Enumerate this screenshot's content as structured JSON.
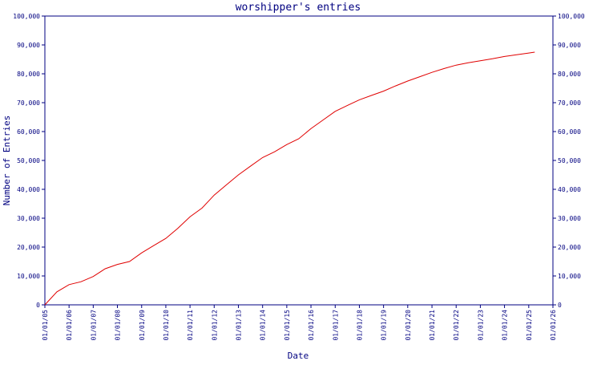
{
  "chart_data": {
    "type": "line",
    "title": "worshipper's entries",
    "xlabel": "Date",
    "ylabel": "Number of Entries",
    "xlim": [
      "2005-01-01",
      "2026-01-01"
    ],
    "ylim": [
      0,
      100000
    ],
    "x_ticks": [
      "01/01/05",
      "01/01/06",
      "01/01/07",
      "01/01/08",
      "01/01/09",
      "01/01/10",
      "01/01/11",
      "01/01/12",
      "01/01/13",
      "01/01/14",
      "01/01/15",
      "01/01/16",
      "01/01/17",
      "01/01/18",
      "01/01/19",
      "01/01/20",
      "01/01/21",
      "01/01/22",
      "01/01/23",
      "01/01/24",
      "01/01/25",
      "01/01/26"
    ],
    "y_ticks": [
      "0",
      "10,000",
      "20,000",
      "30,000",
      "40,000",
      "50,000",
      "60,000",
      "70,000",
      "80,000",
      "90,000",
      "100,000"
    ],
    "y_tick_values": [
      0,
      10000,
      20000,
      30000,
      40000,
      50000,
      60000,
      70000,
      80000,
      90000,
      100000
    ],
    "grid": false,
    "series": [
      {
        "color": "#e00000",
        "x": [
          "2005-01-01",
          "2005-07-01",
          "2006-01-01",
          "2006-07-01",
          "2007-01-01",
          "2007-07-01",
          "2008-01-01",
          "2008-07-01",
          "2009-01-01",
          "2009-07-01",
          "2010-01-01",
          "2010-07-01",
          "2011-01-01",
          "2011-07-01",
          "2012-01-01",
          "2012-07-01",
          "2013-01-01",
          "2013-07-01",
          "2014-01-01",
          "2014-07-01",
          "2015-01-01",
          "2015-07-01",
          "2016-01-01",
          "2016-07-01",
          "2017-01-01",
          "2017-07-01",
          "2018-01-01",
          "2018-07-01",
          "2019-01-01",
          "2019-07-01",
          "2020-01-01",
          "2020-07-01",
          "2021-01-01",
          "2021-07-01",
          "2022-01-01",
          "2022-07-01",
          "2023-01-01",
          "2023-07-01",
          "2024-01-01",
          "2024-07-01",
          "2025-01-01",
          "2025-04-01"
        ],
        "values": [
          0,
          4500,
          7000,
          8000,
          9800,
          12500,
          14000,
          15000,
          18000,
          20500,
          23000,
          26500,
          30500,
          33500,
          38000,
          41500,
          45000,
          48000,
          51000,
          53000,
          55500,
          57500,
          61000,
          64000,
          67000,
          69000,
          71000,
          72500,
          74000,
          75800,
          77500,
          79000,
          80500,
          81800,
          83000,
          83800,
          84500,
          85200,
          86000,
          86600,
          87200,
          87500
        ]
      }
    ]
  }
}
